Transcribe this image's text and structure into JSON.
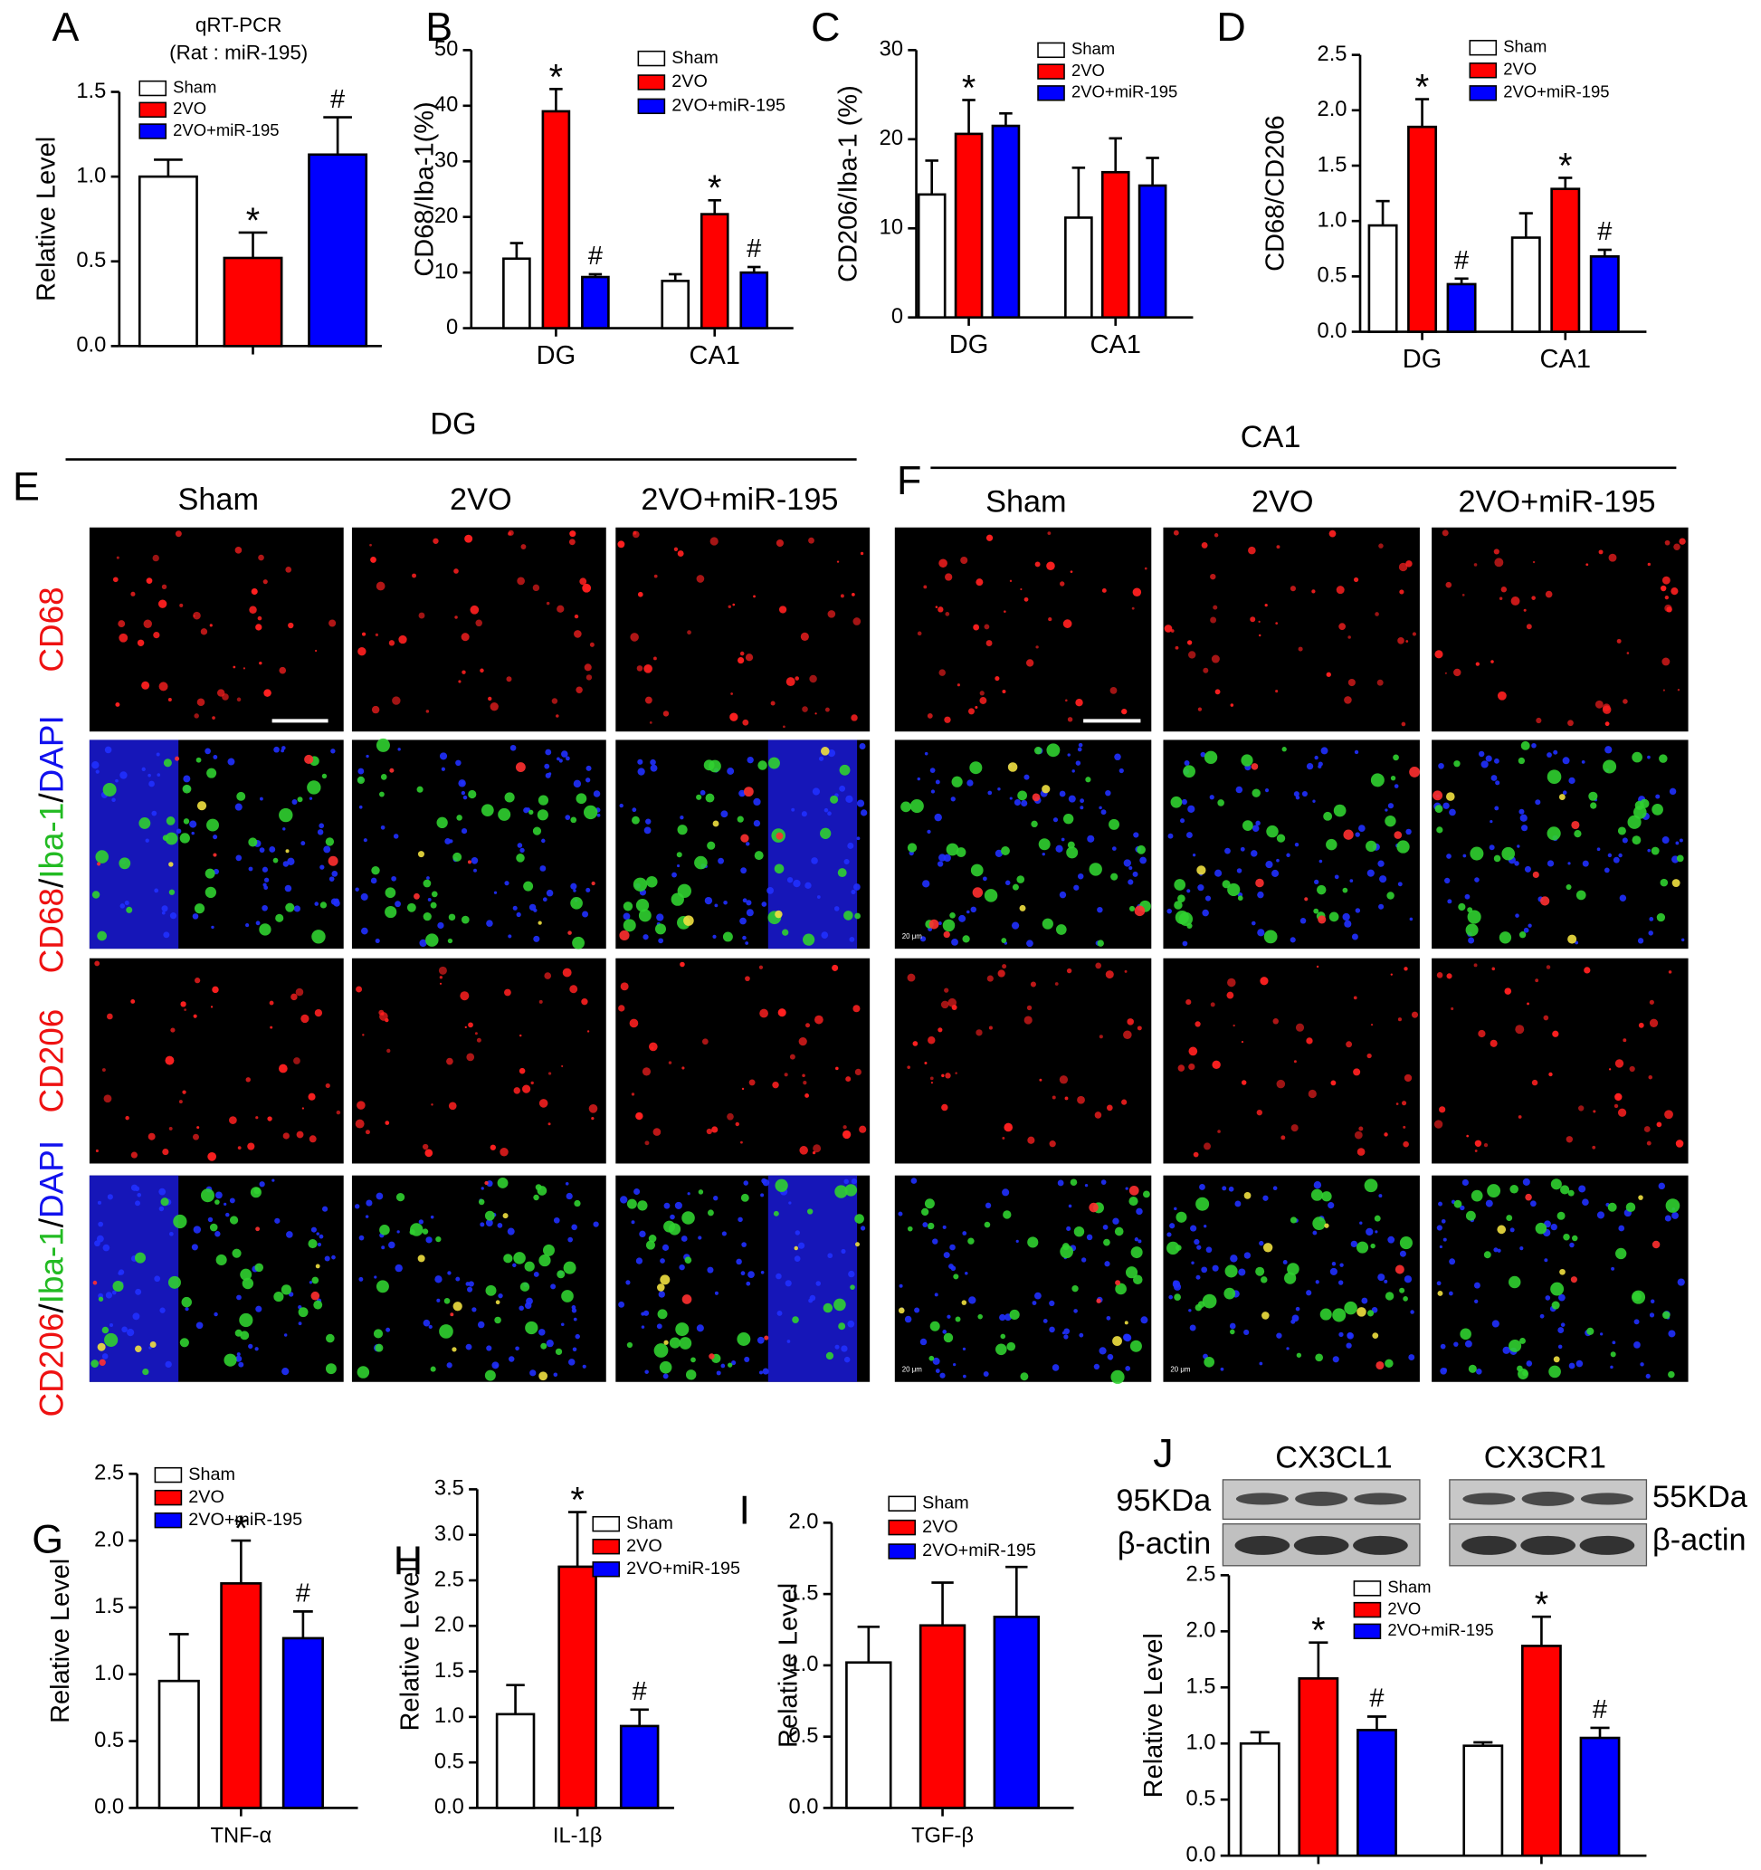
{
  "chart_data": [
    {
      "type": "bar",
      "panel": "A",
      "title": "qRT-PCR",
      "subtitle": "(Rat : miR-195)",
      "y_label": "Relative Level",
      "categories": [
        null
      ],
      "series": [
        {
          "name": "Sham",
          "color": "#ffffff",
          "values": [
            1.0
          ],
          "errors": [
            0.1
          ],
          "annotations": [
            null
          ]
        },
        {
          "name": "2VO",
          "color": "#ff0000",
          "values": [
            0.52
          ],
          "errors": [
            0.15
          ],
          "annotations": [
            "*"
          ]
        },
        {
          "name": "2VO+miR-195",
          "color": "#0000ff",
          "values": [
            1.13
          ],
          "errors": [
            0.22
          ],
          "annotations": [
            "#"
          ]
        }
      ],
      "ylim": [
        0,
        1.5
      ],
      "yticks": [
        {
          "value": 0,
          "label": "0.0"
        },
        {
          "value": 0.5,
          "label": "0.5"
        },
        {
          "value": 1,
          "label": "1.0"
        },
        {
          "value": 1.5,
          "label": "1.5"
        }
      ]
    },
    {
      "type": "bar",
      "panel": "B",
      "y_label": "CD68/Iba-1(%)",
      "categories": [
        "DG",
        "CA1"
      ],
      "series": [
        {
          "name": "Sham",
          "color": "#ffffff",
          "values": [
            12.5,
            8.5
          ],
          "errors": [
            2.8,
            1.2
          ],
          "annotations": [
            null,
            null
          ]
        },
        {
          "name": "2VO",
          "color": "#ff0000",
          "values": [
            39,
            20.5
          ],
          "errors": [
            4,
            2.5
          ],
          "annotations": [
            "*",
            "*"
          ]
        },
        {
          "name": "2VO+miR-195",
          "color": "#0000ff",
          "values": [
            9.2,
            10
          ],
          "errors": [
            0.5,
            1
          ],
          "annotations": [
            "#",
            "#"
          ]
        }
      ],
      "ylim": [
        0,
        50
      ],
      "yticks": [
        0,
        10,
        20,
        30,
        40,
        50
      ]
    },
    {
      "type": "bar",
      "panel": "C",
      "y_label": "CD206/Iba-1 (%)",
      "categories": [
        "DG",
        "CA1"
      ],
      "series": [
        {
          "name": "Sham",
          "color": "#ffffff",
          "values": [
            13.8,
            11.2
          ],
          "errors": [
            3.8,
            5.6
          ],
          "annotations": [
            null,
            null
          ]
        },
        {
          "name": "2VO",
          "color": "#ff0000",
          "values": [
            20.6,
            16.3
          ],
          "errors": [
            3.8,
            3.8
          ],
          "annotations": [
            "*",
            null
          ]
        },
        {
          "name": "2VO+miR-195",
          "color": "#0000ff",
          "values": [
            21.5,
            14.8
          ],
          "errors": [
            1.4,
            3.1
          ],
          "annotations": [
            null,
            null
          ]
        }
      ],
      "ylim": [
        0,
        30
      ],
      "yticks": [
        0,
        10,
        20,
        30
      ]
    },
    {
      "type": "bar",
      "panel": "D",
      "y_label": "CD68/CD206",
      "categories": [
        "DG",
        "CA1"
      ],
      "series": [
        {
          "name": "Sham",
          "color": "#ffffff",
          "values": [
            0.96,
            0.85
          ],
          "errors": [
            0.22,
            0.22
          ],
          "annotations": [
            null,
            null
          ]
        },
        {
          "name": "2VO",
          "color": "#ff0000",
          "values": [
            1.85,
            1.29
          ],
          "errors": [
            0.25,
            0.1
          ],
          "annotations": [
            "*",
            "*"
          ]
        },
        {
          "name": "2VO+miR-195",
          "color": "#0000ff",
          "values": [
            0.43,
            0.68
          ],
          "errors": [
            0.05,
            0.06
          ],
          "annotations": [
            "#",
            "#"
          ]
        }
      ],
      "ylim": [
        0,
        2.5
      ],
      "yticks": [
        {
          "value": 0,
          "label": "0.0"
        },
        {
          "value": 0.5,
          "label": "0.5"
        },
        {
          "value": 1,
          "label": "1.0"
        },
        {
          "value": 1.5,
          "label": "1.5"
        },
        {
          "value": 2,
          "label": "2.0"
        },
        {
          "value": 2.5,
          "label": "2.5"
        }
      ]
    },
    {
      "type": "bar",
      "panel": "G",
      "y_label": "Relative Level",
      "categories": [
        "TNF-α"
      ],
      "series": [
        {
          "name": "Sham",
          "color": "#ffffff",
          "values": [
            0.95
          ],
          "errors": [
            0.35
          ],
          "annotations": [
            null
          ]
        },
        {
          "name": "2VO",
          "color": "#ff0000",
          "values": [
            1.68
          ],
          "errors": [
            0.32
          ],
          "annotations": [
            "*"
          ]
        },
        {
          "name": "2VO+miR-195",
          "color": "#0000ff",
          "values": [
            1.27
          ],
          "errors": [
            0.2
          ],
          "annotations": [
            "#"
          ]
        }
      ],
      "ylim": [
        0,
        2.5
      ],
      "yticks": [
        {
          "value": 0,
          "label": "0.0"
        },
        {
          "value": 0.5,
          "label": "0.5"
        },
        {
          "value": 1,
          "label": "1.0"
        },
        {
          "value": 1.5,
          "label": "1.5"
        },
        {
          "value": 2,
          "label": "2.0"
        },
        {
          "value": 2.5,
          "label": "2.5"
        }
      ]
    },
    {
      "type": "bar",
      "panel": "H",
      "y_label": "Relative Level",
      "categories": [
        "IL-1β"
      ],
      "series": [
        {
          "name": "Sham",
          "color": "#ffffff",
          "values": [
            1.03
          ],
          "errors": [
            0.32
          ],
          "annotations": [
            null
          ]
        },
        {
          "name": "2VO",
          "color": "#ff0000",
          "values": [
            2.65
          ],
          "errors": [
            0.6
          ],
          "annotations": [
            "*"
          ]
        },
        {
          "name": "2VO+miR-195",
          "color": "#0000ff",
          "values": [
            0.9
          ],
          "errors": [
            0.18
          ],
          "annotations": [
            "#"
          ]
        }
      ],
      "ylim": [
        0,
        3.5
      ],
      "yticks": [
        {
          "value": 0,
          "label": "0.0"
        },
        {
          "value": 0.5,
          "label": "0.5"
        },
        {
          "value": 1,
          "label": "1.0"
        },
        {
          "value": 1.5,
          "label": "1.5"
        },
        {
          "value": 2,
          "label": "2.0"
        },
        {
          "value": 2.5,
          "label": "2.5"
        },
        {
          "value": 3,
          "label": "3.0"
        },
        {
          "value": 3.5,
          "label": "3.5"
        }
      ]
    },
    {
      "type": "bar",
      "panel": "I",
      "y_label": "Relative Level",
      "categories": [
        "TGF-β"
      ],
      "series": [
        {
          "name": "Sham",
          "color": "#ffffff",
          "values": [
            1.02
          ],
          "errors": [
            0.25
          ],
          "annotations": [
            null
          ]
        },
        {
          "name": "2VO",
          "color": "#ff0000",
          "values": [
            1.28
          ],
          "errors": [
            0.3
          ],
          "annotations": [
            null
          ]
        },
        {
          "name": "2VO+miR-195",
          "color": "#0000ff",
          "values": [
            1.34
          ],
          "errors": [
            0.35
          ],
          "annotations": [
            null
          ]
        }
      ],
      "ylim": [
        0,
        2
      ],
      "yticks": [
        {
          "value": 0,
          "label": "0.0"
        },
        {
          "value": 0.5,
          "label": "0.5"
        },
        {
          "value": 1,
          "label": "1.0"
        },
        {
          "value": 1.5,
          "label": "1.5"
        },
        {
          "value": 2,
          "label": "2.0"
        }
      ]
    },
    {
      "type": "bar",
      "y_label": "Relative Level",
      "categories": [
        null,
        null
      ],
      "series": [
        {
          "name": "Sham",
          "color": "#ffffff",
          "values": [
            1.0,
            0.98
          ],
          "errors": [
            0.1,
            0.03
          ],
          "annotations": [
            null,
            null
          ]
        },
        {
          "name": "2VO",
          "color": "#ff0000",
          "values": [
            1.58,
            1.87
          ],
          "errors": [
            0.32,
            0.26
          ],
          "annotations": [
            "*",
            "*"
          ]
        },
        {
          "name": "2VO+miR-195",
          "color": "#0000ff",
          "values": [
            1.12,
            1.05
          ],
          "errors": [
            0.12,
            0.09
          ],
          "annotations": [
            "#",
            "#"
          ]
        }
      ],
      "ylim": [
        0,
        2.5
      ],
      "yticks": [
        {
          "value": 0,
          "label": "0.0"
        },
        {
          "value": 0.5,
          "label": "0.5"
        },
        {
          "value": 1,
          "label": "1.0"
        },
        {
          "value": 1.5,
          "label": "1.5"
        },
        {
          "value": 2,
          "label": "2.0"
        },
        {
          "value": 2.5,
          "label": "2.5"
        }
      ]
    }
  ],
  "microscopy": [
    {
      "panel": "E",
      "region": "DG",
      "columns": [
        "Sham",
        "2VO",
        "2VO+miR-195"
      ]
    },
    {
      "panel": "F",
      "region": "CA1",
      "columns": [
        "Sham",
        "2VO",
        "2VO+miR-195"
      ]
    }
  ],
  "row_labels": [
    [
      {
        "text": "CD68",
        "color": "#ee1111"
      }
    ],
    [
      {
        "text": "CD68",
        "color": "#ee1111"
      },
      {
        "text": "/",
        "color": "#000000"
      },
      {
        "text": "Iba-1",
        "color": "#22bb22"
      },
      {
        "text": "/",
        "color": "#000000"
      },
      {
        "text": "DAPI",
        "color": "#1111ee"
      }
    ],
    [
      {
        "text": "CD206",
        "color": "#ee1111"
      }
    ],
    [
      {
        "text": "CD206",
        "color": "#ee1111"
      },
      {
        "text": "/",
        "color": "#000000"
      },
      {
        "text": "Iba-1",
        "color": "#22bb22"
      },
      {
        "text": "/",
        "color": "#000000"
      },
      {
        "text": "DAPI",
        "color": "#1111ee"
      }
    ]
  ],
  "scale_label": "20 μm",
  "blot": {
    "panel": "J",
    "targets": [
      "CX3CL1",
      "CX3CR1"
    ],
    "left_labels": [
      "95KDa",
      "β-actin"
    ],
    "right_labels": [
      "55KDa",
      "β-actin"
    ]
  }
}
